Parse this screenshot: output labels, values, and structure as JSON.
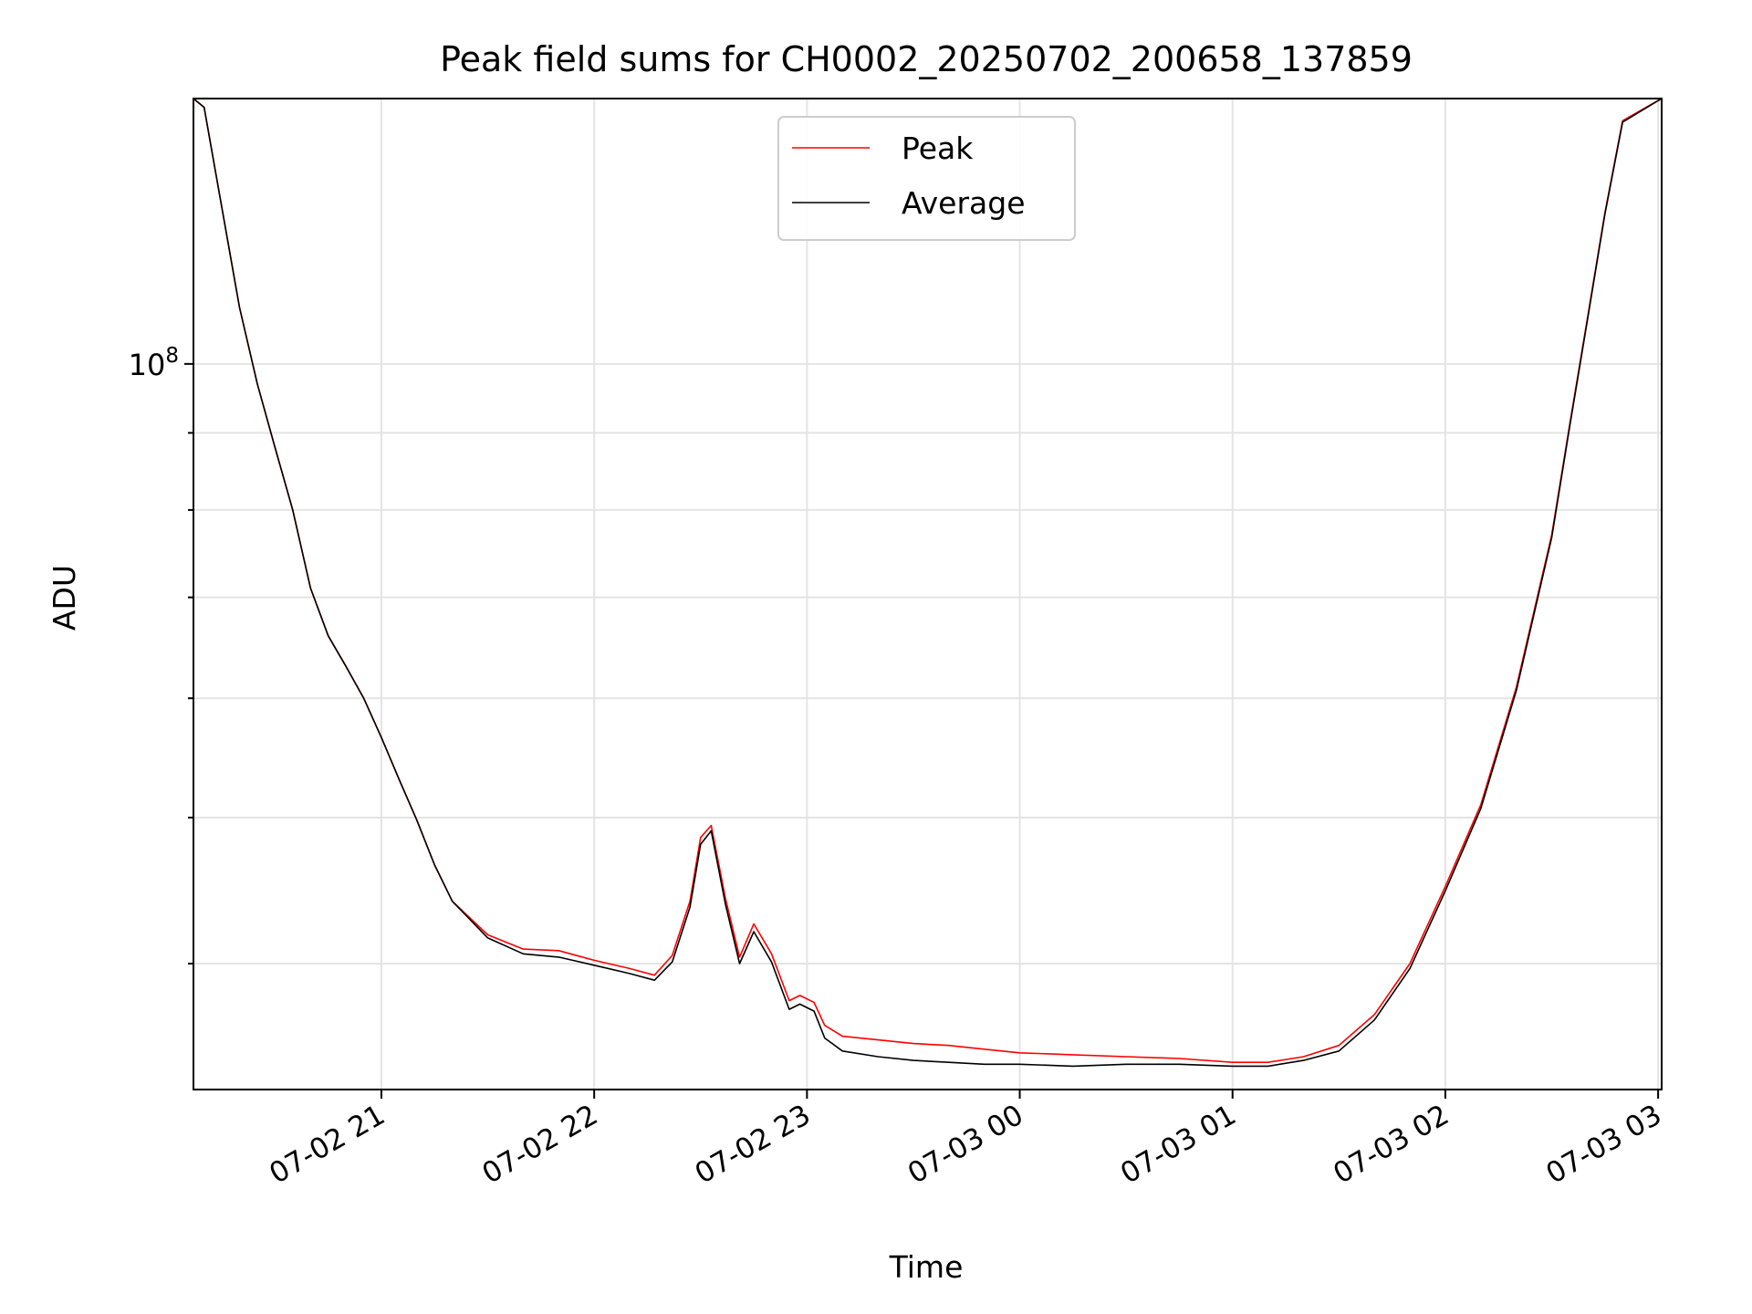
{
  "chart_data": {
    "type": "line",
    "title": "Peak field sums for CH0002_20250702_200658_137859",
    "xlabel": "Time",
    "ylabel": "ADU",
    "yscale": "log",
    "xlim": [
      "07-02 20:07",
      "07-03 03:01"
    ],
    "ylim": [
      33000000,
      150000000
    ],
    "x_ticks": [
      "07-02 21",
      "07-02 22",
      "07-02 23",
      "07-03 00",
      "07-03 01",
      "07-03 02",
      "07-03 03"
    ],
    "y_ticks": [
      {
        "value": 100000000,
        "label": "10",
        "exp": "8"
      }
    ],
    "grid": true,
    "legend": {
      "position": "top-center",
      "entries": [
        {
          "name": "Peak",
          "color": "#ff0000"
        },
        {
          "name": "Average",
          "color": "#000000"
        }
      ]
    },
    "series": [
      {
        "name": "Peak",
        "color": "#ff0000",
        "x": [
          "07-02 20:07",
          "07-02 20:10",
          "07-02 20:15",
          "07-02 20:20",
          "07-02 20:25",
          "07-02 20:30",
          "07-02 20:35",
          "07-02 20:40",
          "07-02 20:45",
          "07-02 20:50",
          "07-02 20:55",
          "07-02 21:00",
          "07-02 21:05",
          "07-02 21:10",
          "07-02 21:15",
          "07-02 21:20",
          "07-02 21:30",
          "07-02 21:40",
          "07-02 21:50",
          "07-02 22:00",
          "07-02 22:10",
          "07-02 22:17",
          "07-02 22:22",
          "07-02 22:27",
          "07-02 22:30",
          "07-02 22:33",
          "07-02 22:37",
          "07-02 22:41",
          "07-02 22:45",
          "07-02 22:50",
          "07-02 22:55",
          "07-02 22:58",
          "07-02 23:02",
          "07-02 23:05",
          "07-02 23:10",
          "07-02 23:20",
          "07-02 23:30",
          "07-02 23:40",
          "07-02 23:50",
          "07-03 00:00",
          "07-03 00:15",
          "07-03 00:30",
          "07-03 00:45",
          "07-03 01:00",
          "07-03 01:10",
          "07-03 01:20",
          "07-03 01:30",
          "07-03 01:40",
          "07-03 01:50",
          "07-03 02:00",
          "07-03 02:10",
          "07-03 02:20",
          "07-03 02:30",
          "07-03 02:35",
          "07-03 02:40",
          "07-03 02:45",
          "07-03 02:50",
          "07-03 03:01"
        ],
        "y": [
          150000000,
          148000000,
          127000000,
          109000000,
          97000000,
          88000000,
          80000000,
          71000000,
          66000000,
          63000000,
          60000000,
          56500000,
          53000000,
          49800000,
          46500000,
          44000000,
          41800000,
          40900000,
          40800000,
          40200000,
          39700000,
          39300000,
          40500000,
          44000000,
          48500000,
          49400000,
          44200000,
          40400000,
          42500000,
          40600000,
          37800000,
          38100000,
          37700000,
          36400000,
          35800000,
          35600000,
          35400000,
          35300000,
          35100000,
          34900000,
          34800000,
          34700000,
          34600000,
          34400000,
          34400000,
          34700000,
          35300000,
          37000000,
          40000000,
          45000000,
          51000000,
          61000000,
          77000000,
          91000000,
          107000000,
          126000000,
          145000000,
          150000000
        ]
      },
      {
        "name": "Average",
        "color": "#000000",
        "x": [
          "07-02 20:07",
          "07-02 20:10",
          "07-02 20:15",
          "07-02 20:20",
          "07-02 20:25",
          "07-02 20:30",
          "07-02 20:35",
          "07-02 20:40",
          "07-02 20:45",
          "07-02 20:50",
          "07-02 20:55",
          "07-02 21:00",
          "07-02 21:05",
          "07-02 21:10",
          "07-02 21:15",
          "07-02 21:20",
          "07-02 21:30",
          "07-02 21:40",
          "07-02 21:50",
          "07-02 22:00",
          "07-02 22:10",
          "07-02 22:17",
          "07-02 22:22",
          "07-02 22:27",
          "07-02 22:30",
          "07-02 22:33",
          "07-02 22:37",
          "07-02 22:41",
          "07-02 22:45",
          "07-02 22:50",
          "07-02 22:55",
          "07-02 22:58",
          "07-02 23:02",
          "07-02 23:05",
          "07-02 23:10",
          "07-02 23:20",
          "07-02 23:30",
          "07-02 23:40",
          "07-02 23:50",
          "07-03 00:00",
          "07-03 00:15",
          "07-03 00:30",
          "07-03 00:45",
          "07-03 01:00",
          "07-03 01:10",
          "07-03 01:20",
          "07-03 01:30",
          "07-03 01:40",
          "07-03 01:50",
          "07-03 02:00",
          "07-03 02:10",
          "07-03 02:20",
          "07-03 02:30",
          "07-03 02:35",
          "07-03 02:40",
          "07-03 02:45",
          "07-03 02:50",
          "07-03 03:01"
        ],
        "y": [
          150000000,
          148000000,
          127000000,
          109000000,
          97000000,
          88000000,
          80000000,
          71000000,
          66000000,
          63000000,
          60000000,
          56500000,
          53000000,
          49800000,
          46500000,
          44000000,
          41600000,
          40600000,
          40400000,
          39900000,
          39400000,
          39000000,
          40100000,
          43600000,
          48000000,
          49000000,
          43800000,
          40000000,
          42000000,
          40100000,
          37300000,
          37600000,
          37200000,
          35700000,
          35000000,
          34700000,
          34500000,
          34400000,
          34300000,
          34300000,
          34200000,
          34300000,
          34300000,
          34200000,
          34200000,
          34500000,
          35000000,
          36700000,
          39700000,
          44700000,
          50700000,
          60700000,
          76700000,
          90700000,
          106700000,
          125700000,
          144700000,
          150000000
        ]
      }
    ]
  }
}
